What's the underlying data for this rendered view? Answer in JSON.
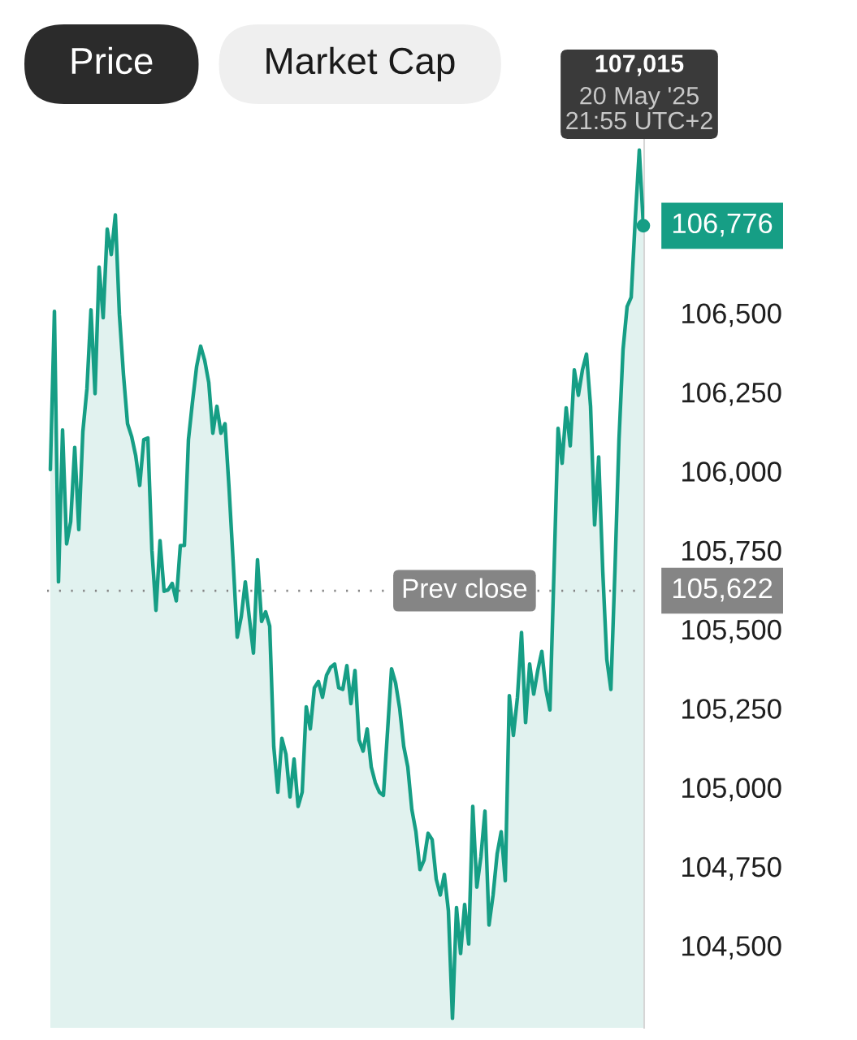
{
  "chart_data": {
    "type": "area",
    "categories": [
      null,
      null,
      null,
      null,
      null,
      null,
      null,
      null,
      null,
      null,
      null,
      null,
      null,
      null,
      null,
      null,
      null,
      null,
      null,
      null,
      null,
      null,
      null,
      null,
      null,
      null,
      null,
      null,
      null,
      null,
      null,
      null,
      null,
      null,
      null,
      null,
      null,
      null,
      null,
      null,
      null,
      null,
      null,
      null,
      null,
      null,
      null,
      null,
      null,
      null,
      null,
      null,
      null,
      null,
      null,
      null,
      null,
      null,
      null,
      null,
      null,
      null,
      null,
      null,
      null,
      null,
      null,
      null,
      null,
      null,
      null,
      null,
      null,
      null,
      null,
      null,
      null,
      null,
      null,
      null,
      null,
      null,
      null,
      null,
      null,
      null,
      null,
      null,
      null,
      null,
      null,
      null,
      null,
      null,
      null,
      null,
      null,
      null,
      null,
      null,
      null,
      null,
      null,
      null,
      null,
      null,
      null,
      null,
      null,
      null,
      null,
      null,
      null,
      null,
      null,
      null,
      null,
      null,
      null,
      null,
      null,
      null,
      null,
      null,
      null,
      null,
      null,
      null,
      null,
      null,
      null,
      null,
      null,
      null,
      null,
      null,
      null,
      null,
      null,
      null,
      null,
      null,
      null,
      null,
      null,
      null,
      null
    ],
    "values": [
      106005,
      106505,
      105650,
      106130,
      105770,
      105840,
      106075,
      105815,
      106125,
      106260,
      106510,
      106245,
      106645,
      106485,
      106765,
      106685,
      106810,
      106495,
      106305,
      106150,
      106110,
      106050,
      105955,
      106100,
      106105,
      105750,
      105560,
      105780,
      105620,
      105625,
      105645,
      105590,
      105765,
      105765,
      106100,
      106220,
      106330,
      106395,
      106350,
      106280,
      106120,
      106205,
      106120,
      106150,
      105945,
      105715,
      105475,
      105540,
      105650,
      105535,
      105425,
      105720,
      105525,
      105555,
      105510,
      105130,
      104985,
      105155,
      105105,
      104970,
      105090,
      104940,
      104985,
      105255,
      105185,
      105315,
      105335,
      105285,
      105355,
      105380,
      105390,
      105315,
      105310,
      105385,
      105265,
      105370,
      105150,
      105115,
      105185,
      105065,
      105015,
      104985,
      104975,
      105175,
      105375,
      105330,
      105250,
      105130,
      105065,
      104930,
      104860,
      104740,
      104770,
      104855,
      104835,
      104710,
      104660,
      104725,
      104610,
      104270,
      104620,
      104475,
      104630,
      104505,
      104940,
      104685,
      104780,
      104925,
      104565,
      104660,
      104790,
      104860,
      104705,
      105290,
      105165,
      105285,
      105490,
      105205,
      105390,
      105295,
      105370,
      105430,
      105310,
      105245,
      105685,
      106135,
      106025,
      106200,
      106080,
      106320,
      106240,
      106320,
      106370,
      106205,
      105830,
      106045,
      105685,
      105405,
      105310,
      105685,
      106100,
      106385,
      106520,
      106550,
      106795,
      107015,
      106776
    ],
    "value_labels": [
      null,
      null,
      null,
      null,
      null,
      null,
      null,
      null,
      null,
      null,
      null,
      null,
      null,
      null,
      null,
      null,
      null,
      null,
      null,
      null,
      null,
      null,
      null,
      null,
      null,
      null,
      null,
      null,
      null,
      null,
      null,
      null,
      null,
      null,
      null,
      null,
      null,
      null,
      null,
      null,
      null,
      null,
      null,
      null,
      null,
      null,
      null,
      null,
      null,
      null,
      null,
      null,
      null,
      null,
      null,
      null,
      null,
      null,
      null,
      null,
      null,
      null,
      null,
      null,
      null,
      null,
      null,
      null,
      null,
      null,
      null,
      null,
      null,
      null,
      null,
      null,
      null,
      null,
      null,
      null,
      null,
      null,
      null,
      null,
      null,
      null,
      null,
      null,
      null,
      null,
      null,
      null,
      null,
      null,
      null,
      null,
      null,
      null,
      null,
      null,
      null,
      null,
      null,
      null,
      null,
      null,
      null,
      null,
      null,
      null,
      null,
      null,
      null,
      null,
      null,
      null,
      null,
      null,
      null,
      null,
      null,
      null,
      null,
      null,
      null,
      null,
      null,
      null,
      null,
      null,
      null,
      null,
      null,
      null,
      null,
      null,
      null,
      null,
      null,
      null,
      null,
      null,
      null,
      null,
      null,
      null,
      "106,776"
    ],
    "color": "#169e85",
    "ylim": [
      104240,
      107130
    ],
    "yticks": [
      {
        "value": 104500,
        "label": "104,500"
      },
      {
        "value": 104750,
        "label": "104,750"
      },
      {
        "value": 105000,
        "label": "105,000"
      },
      {
        "value": 105250,
        "label": "105,250"
      },
      {
        "value": 105500,
        "label": "105,500"
      },
      {
        "value": 105750,
        "label": "105,750"
      },
      {
        "value": 106000,
        "label": "106,000"
      },
      {
        "value": 106250,
        "label": "106,250"
      },
      {
        "value": 106500,
        "label": "106,500"
      }
    ],
    "tick_labels": "y",
    "ref_lines": [
      {
        "axis": "y",
        "value": 105622,
        "label": "Prev close",
        "color": "#858585",
        "line_style": "dotted"
      }
    ],
    "annotations": [
      "Price",
      "Market Cap",
      {
        "text": "107,015\n20 May '25\n21:55 UTC+2",
        "y": 107015
      },
      "105,622"
    ]
  }
}
